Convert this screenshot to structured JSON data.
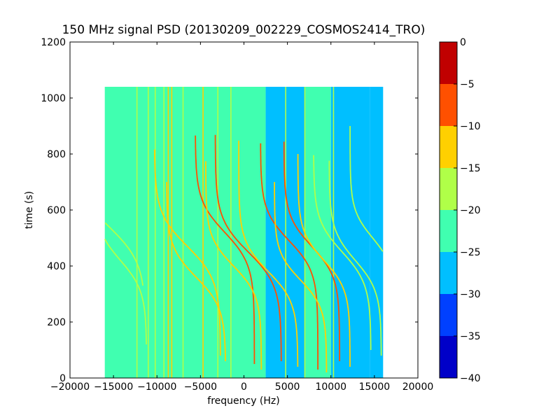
{
  "chart_data": {
    "type": "heatmap",
    "title": "150 MHz signal PSD (20130209_002229_COSMOS2414_TRO)",
    "xlabel": "frequency (Hz)",
    "ylabel": "time (s)",
    "xlim": [
      -20000,
      20000
    ],
    "ylim": [
      0,
      1200
    ],
    "xticks": [
      -20000,
      -15000,
      -10000,
      -5000,
      0,
      5000,
      10000,
      15000,
      20000
    ],
    "xtick_labels": [
      "−20000",
      "−15000",
      "−10000",
      "−5000",
      "0",
      "5000",
      "10000",
      "15000",
      "20000"
    ],
    "yticks": [
      0,
      200,
      400,
      600,
      800,
      1000,
      1200
    ],
    "ytick_labels": [
      "0",
      "200",
      "400",
      "600",
      "800",
      "1000",
      "1200"
    ],
    "data_extent": {
      "x": [
        -16000,
        16000
      ],
      "y": [
        0,
        1040
      ]
    },
    "grid": false,
    "colorbar": {
      "range": [
        -40,
        0
      ],
      "levels": [
        -40,
        -35,
        -30,
        -25,
        -20,
        -15,
        -10,
        -5,
        0
      ],
      "tick_labels": [
        "−40",
        "−35",
        "−30",
        "−25",
        "−20",
        "−15",
        "−10",
        "−5",
        "0"
      ],
      "colors": [
        "#0000c8",
        "#0040ff",
        "#00bfff",
        "#40ffb0",
        "#b0ff48",
        "#ffd000",
        "#ff5000",
        "#c00000"
      ]
    },
    "background_regions": [
      {
        "x": [
          -16000,
          2500
        ],
        "level": -22
      },
      {
        "x": [
          2500,
          7000
        ],
        "level": -26
      },
      {
        "x": [
          7000,
          10000
        ],
        "level": -23
      },
      {
        "x": [
          10000,
          14500
        ],
        "level": -28
      },
      {
        "x": [
          14500,
          16000
        ],
        "level": -27
      }
    ],
    "vertical_lines": [
      {
        "x": -12300,
        "level": -18
      },
      {
        "x": -11000,
        "level": -16
      },
      {
        "x": -10200,
        "level": -18
      },
      {
        "x": -9200,
        "level": -16
      },
      {
        "x": -8700,
        "level": -12
      },
      {
        "x": -8300,
        "level": -15
      },
      {
        "x": -7000,
        "level": -17
      },
      {
        "x": -4700,
        "level": -12
      },
      {
        "x": -3000,
        "level": -16
      },
      {
        "x": -1500,
        "level": -17
      },
      {
        "x": 4800,
        "level": -17
      },
      {
        "x": 7000,
        "level": -16
      },
      {
        "x": 10300,
        "level": -17
      }
    ],
    "doppler_tracks": [
      {
        "xc": -15500,
        "tc": 540,
        "a": 4200,
        "tau": 130,
        "t": [
          330,
          760
        ],
        "level": -16
      },
      {
        "xc": -14200,
        "tc": 420,
        "a": 3000,
        "tau": 110,
        "t": [
          120,
          700
        ],
        "level": -17
      },
      {
        "xc": -6500,
        "tc": 470,
        "a": 3800,
        "tau": 120,
        "t": [
          80,
          820
        ],
        "level": -13
      },
      {
        "xc": -5500,
        "tc": 360,
        "a": 3400,
        "tau": 110,
        "t": [
          60,
          700
        ],
        "level": -15
      },
      {
        "xc": -2200,
        "tc": 520,
        "a": 3400,
        "tau": 115,
        "t": [
          50,
          870
        ],
        "level": -8
      },
      {
        "xc": -1200,
        "tc": 400,
        "a": 3200,
        "tau": 105,
        "t": [
          30,
          780
        ],
        "level": -14
      },
      {
        "xc": 500,
        "tc": 450,
        "a": 3800,
        "tau": 120,
        "t": [
          60,
          870
        ],
        "level": -6
      },
      {
        "xc": 2800,
        "tc": 380,
        "a": 3400,
        "tau": 110,
        "t": [
          40,
          850
        ],
        "level": -12
      },
      {
        "xc": 5200,
        "tc": 490,
        "a": 3300,
        "tau": 110,
        "t": [
          30,
          840
        ],
        "level": -8
      },
      {
        "xc": 6500,
        "tc": 350,
        "a": 3000,
        "tau": 100,
        "t": [
          20,
          700
        ],
        "level": -14
      },
      {
        "xc": 7800,
        "tc": 470,
        "a": 3200,
        "tau": 110,
        "t": [
          60,
          850
        ],
        "level": -8
      },
      {
        "xc": 9200,
        "tc": 420,
        "a": 3000,
        "tau": 105,
        "t": [
          40,
          800
        ],
        "level": -15
      },
      {
        "xc": 11300,
        "tc": 450,
        "a": 3300,
        "tau": 115,
        "t": [
          100,
          800
        ],
        "level": -17
      },
      {
        "xc": 12800,
        "tc": 420,
        "a": 3000,
        "tau": 110,
        "t": [
          80,
          780
        ],
        "level": -18
      },
      {
        "xc": 14800,
        "tc": 500,
        "a": 2600,
        "tau": 100,
        "t": [
          60,
          900
        ],
        "level": -17
      }
    ]
  }
}
